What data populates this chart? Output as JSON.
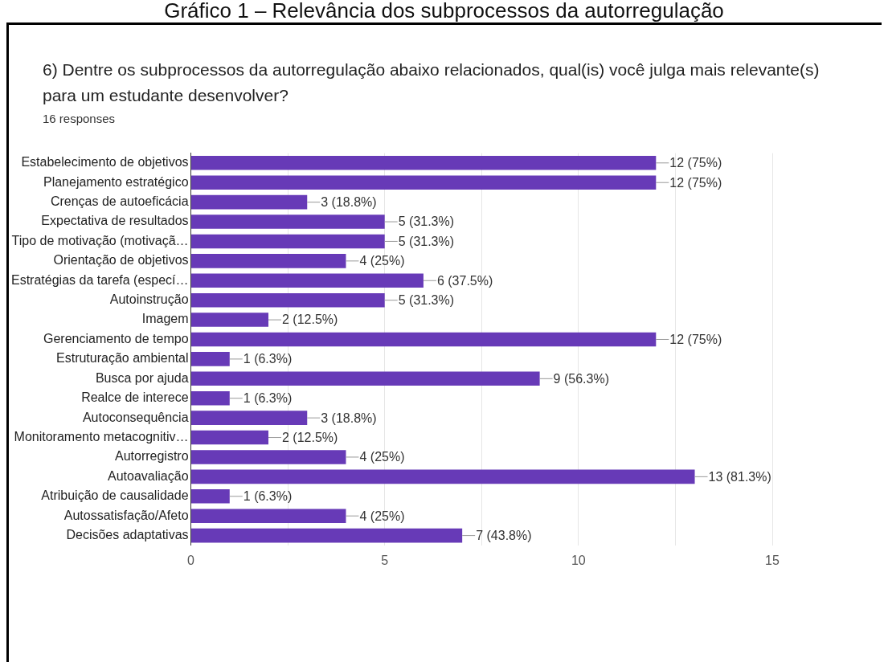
{
  "chart_data": {
    "type": "bar",
    "orientation": "horizontal",
    "title": "Gráfico 1 – Relevância dos subprocessos da autorregulação",
    "subtitle": "6) Dentre os subprocessos da autorregulação abaixo relacionados, qual(is) você julga mais relevante(s) para um estudante desenvolver?",
    "annotations": [
      "16 responses"
    ],
    "categories": [
      "Estabelecimento de objetivos",
      "Planejamento estratégico",
      "Crenças de autoeficácia",
      "Expectativa de resultados",
      "Tipo de motivação (motivaçã…",
      "Orientação de objetivos",
      "Estratégias da tarefa (especí…",
      "Autoinstrução",
      "Imagem",
      "Gerenciamento de tempo",
      "Estruturação ambiental",
      "Busca por ajuda",
      "Realce de interece",
      "Autoconsequência",
      "Monitoramento metacognitiv…",
      "Autorregistro",
      "Autoavaliação",
      "Atribuição de causalidade",
      "Autossatisfação/Afeto",
      "Decisões adaptativas"
    ],
    "values": [
      12,
      12,
      3,
      5,
      5,
      4,
      6,
      5,
      2,
      12,
      1,
      9,
      1,
      3,
      2,
      4,
      13,
      1,
      4,
      7
    ],
    "value_labels": [
      "12 (75%)",
      "12 (75%)",
      "3 (18.8%)",
      "5 (31.3%)",
      "5 (31.3%)",
      "4 (25%)",
      "6 (37.5%)",
      "5 (31.3%)",
      "2 (12.5%)",
      "12 (75%)",
      "1 (6.3%)",
      "9 (56.3%)",
      "1 (6.3%)",
      "3 (18.8%)",
      "2 (12.5%)",
      "4 (25%)",
      "13 (81.3%)",
      "1 (6.3%)",
      "4 (25%)",
      "7 (43.8%)"
    ],
    "color": "#673ab7",
    "xlim": [
      0,
      15
    ],
    "xticks": [
      0,
      {
        "value": 2.5,
        "label": null
      },
      5,
      {
        "value": 7.5,
        "label": null
      },
      10,
      {
        "value": 12.5,
        "label": null
      },
      15
    ],
    "grid": "x",
    "legend": false
  }
}
